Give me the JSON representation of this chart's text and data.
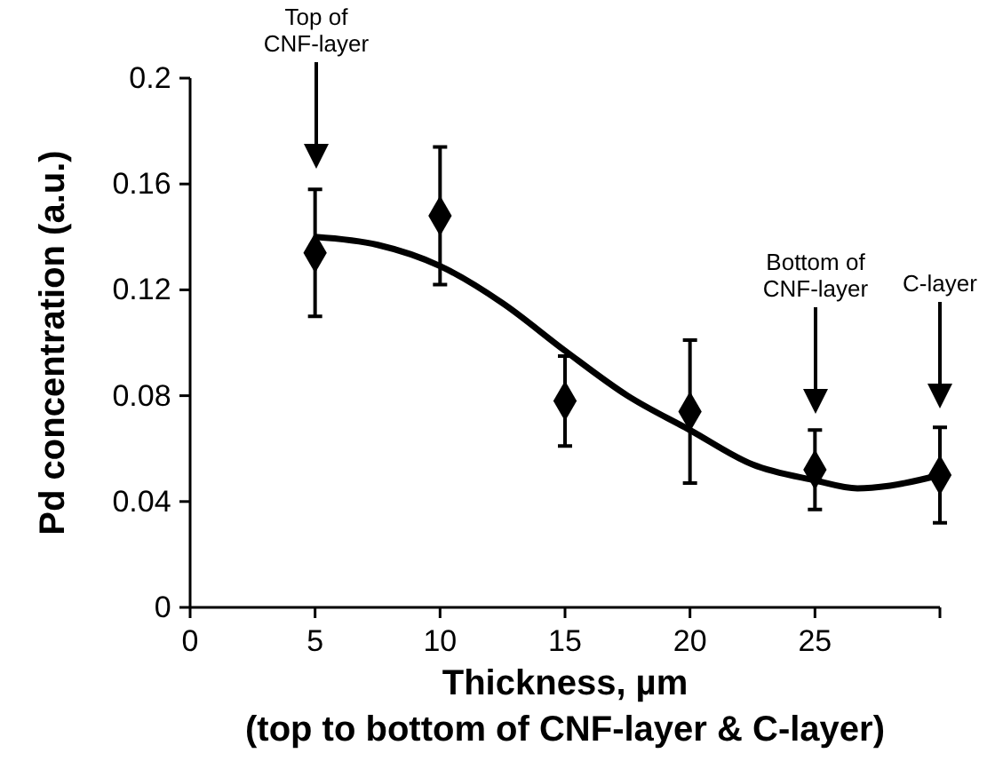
{
  "chart_data": {
    "type": "scatter",
    "xlabel": "Thickness, µm\n(top to bottom of CNF-layer & C-layer)",
    "ylabel": "Pd concentration (a.u.)",
    "xlim": [
      0,
      30
    ],
    "xticks": [
      0,
      5,
      10,
      15,
      20,
      25,
      {
        "value": 30,
        "label": null
      }
    ],
    "ylim": [
      0,
      0.2
    ],
    "yticks": [
      0,
      0.04,
      0.08,
      0.12,
      0.16,
      0.2
    ],
    "marker": "diamond",
    "grid": false,
    "series": [
      {
        "color": "#000000",
        "x": [
          5,
          10,
          15,
          20,
          25,
          30
        ],
        "values": [
          0.134,
          0.148,
          0.078,
          0.074,
          0.052,
          0.05
        ],
        "errors": [
          [
            0.11,
            0.158
          ],
          [
            0.122,
            0.174
          ],
          [
            0.061,
            0.095
          ],
          [
            0.047,
            0.101
          ],
          [
            0.037,
            0.067
          ],
          [
            0.032,
            0.068
          ]
        ]
      },
      {
        "type": "line",
        "color": "#000000",
        "marker": "none",
        "line_style": "solid",
        "x": [
          5,
          7.5,
          10,
          12.5,
          15,
          17.5,
          20,
          22.5,
          25,
          26.7,
          28,
          30
        ],
        "values": [
          0.14,
          0.137,
          0.129,
          0.115,
          0.097,
          0.08,
          0.067,
          0.054,
          0.048,
          0.045,
          0.046,
          0.05
        ]
      }
    ],
    "annotations": [
      "Top of\nCNF-layer",
      "Bottom of\nCNF-layer",
      "C-layer"
    ]
  }
}
